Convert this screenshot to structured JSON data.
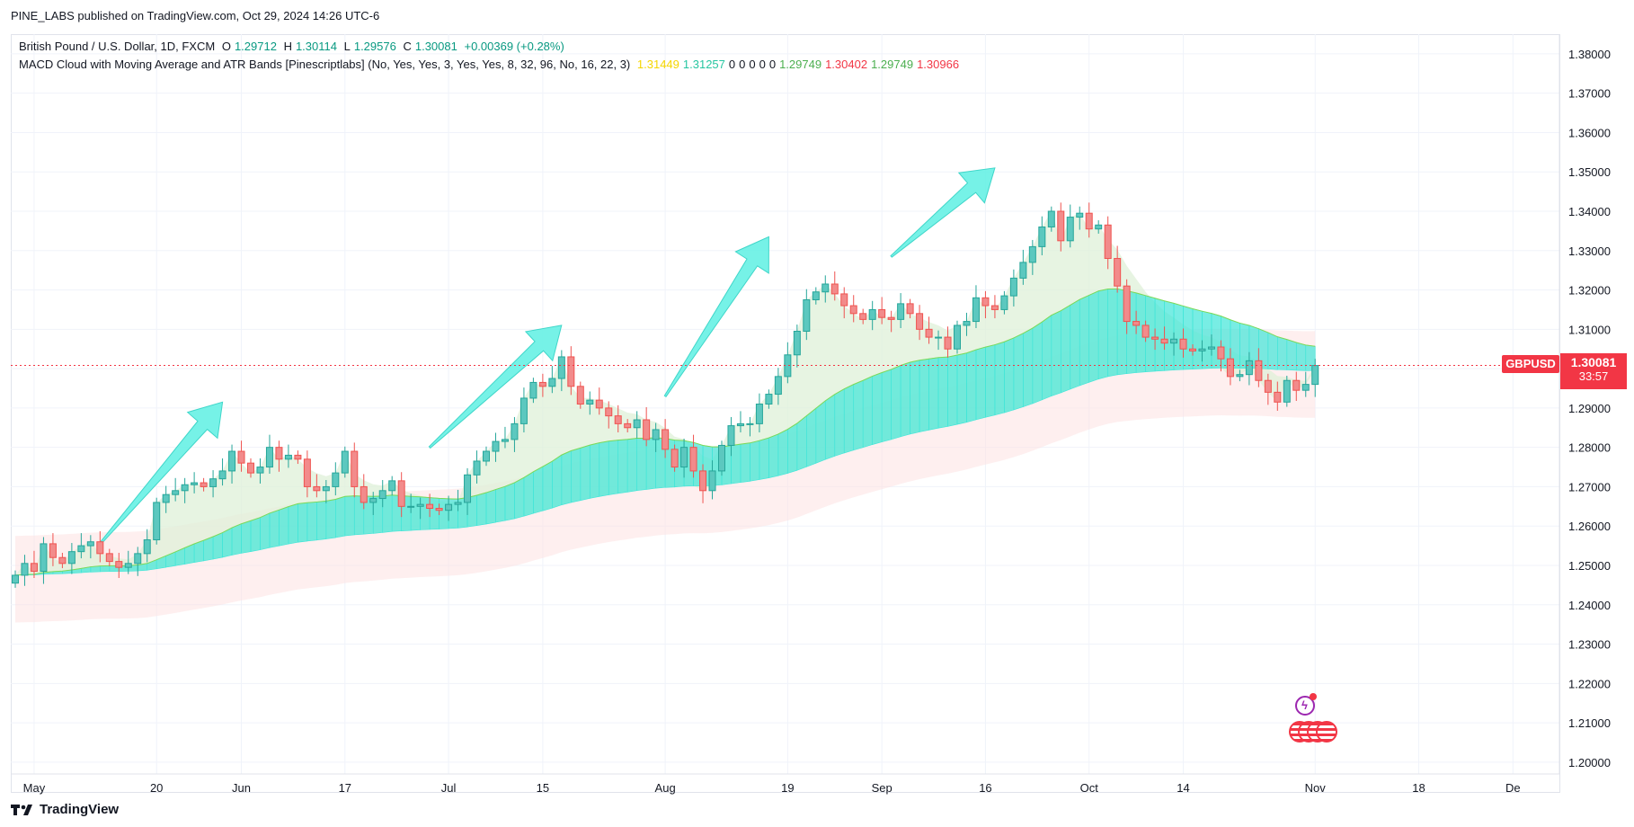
{
  "header": {
    "publisher": "PINE_LABS published on TradingView.com, Oct 29, 2024 14:26 UTC-6"
  },
  "legend": {
    "instrument": "British Pound / U.S. Dollar, 1D, FXCM",
    "open_label": "O",
    "open": "1.29712",
    "high_label": "H",
    "high": "1.30114",
    "low_label": "L",
    "low": "1.29576",
    "close_label": "C",
    "close": "1.30081",
    "change": "+0.00369 (+0.28%)",
    "indicator": "MACD Cloud with Moving Average and ATR Bands [Pinescriptlabs] (No, Yes, Yes, 3, Yes, Yes, 8, 32, 96, No, 16, 22, 3)",
    "ind_values": [
      {
        "v": "1.31449",
        "color": "#f5d600"
      },
      {
        "v": "1.31257",
        "color": "#26c6a1"
      },
      {
        "v": "0",
        "color": "#131722"
      },
      {
        "v": "0",
        "color": "#131722"
      },
      {
        "v": "0",
        "color": "#131722"
      },
      {
        "v": "0",
        "color": "#131722"
      },
      {
        "v": "0",
        "color": "#131722"
      },
      {
        "v": "1.29749",
        "color": "#4caf50"
      },
      {
        "v": "1.30402",
        "color": "#f23645"
      },
      {
        "v": "1.29749",
        "color": "#4caf50"
      },
      {
        "v": "1.30966",
        "color": "#f23645"
      }
    ]
  },
  "price_label": {
    "symbol": "GBPUSD",
    "price": "1.30081",
    "countdown": "33:57"
  },
  "footer": {
    "brand": "TradingView"
  },
  "colors": {
    "up": "#26a69a",
    "up_fill": "#5cc8bf",
    "down": "#ef5350",
    "down_fill": "#f28b8b",
    "cloud_teal": "#3ee6d8",
    "cloud_yellow": "#ffe680",
    "band_green": "#dff0d8",
    "band_red": "#fde0e0",
    "arrow": "#5ef0e3",
    "price_line": "#f23645"
  },
  "chart_data": {
    "type": "candlestick",
    "symbol": "GBPUSD",
    "interval": "1D",
    "ylim": [
      1.197,
      1.385
    ],
    "y_ticks": [
      "1.20000",
      "1.21000",
      "1.22000",
      "1.23000",
      "1.24000",
      "1.25000",
      "1.26000",
      "1.27000",
      "1.28000",
      "1.29000",
      "1.30000",
      "1.31000",
      "1.32000",
      "1.33000",
      "1.34000",
      "1.35000",
      "1.36000",
      "1.37000",
      "1.38000"
    ],
    "x_ticks": [
      {
        "label": "May",
        "idx": 2
      },
      {
        "label": "20",
        "idx": 15
      },
      {
        "label": "Jun",
        "idx": 24
      },
      {
        "label": "17",
        "idx": 35
      },
      {
        "label": "Jul",
        "idx": 46
      },
      {
        "label": "15",
        "idx": 56
      },
      {
        "label": "Aug",
        "idx": 69
      },
      {
        "label": "19",
        "idx": 82
      },
      {
        "label": "Sep",
        "idx": 92
      },
      {
        "label": "16",
        "idx": 103
      },
      {
        "label": "Oct",
        "idx": 114
      },
      {
        "label": "14",
        "idx": 124
      },
      {
        "label": "Nov",
        "idx": 138
      },
      {
        "label": "18",
        "idx": 149
      },
      {
        "label": "De",
        "idx": 159
      }
    ],
    "ohlc_close": [
      1.2475,
      1.2505,
      1.2485,
      1.2555,
      1.252,
      1.2505,
      1.2535,
      1.255,
      1.256,
      1.253,
      1.251,
      1.2495,
      1.2505,
      1.253,
      1.2565,
      1.266,
      1.268,
      1.269,
      1.2705,
      1.271,
      1.27,
      1.272,
      1.274,
      1.279,
      1.276,
      1.2735,
      1.275,
      1.28,
      1.277,
      1.278,
      1.277,
      1.27,
      1.269,
      1.27,
      1.2735,
      1.279,
      1.27,
      1.266,
      1.267,
      1.269,
      1.2715,
      1.265,
      1.265,
      1.2655,
      1.2645,
      1.264,
      1.2655,
      1.266,
      1.273,
      1.2765,
      1.279,
      1.2815,
      1.282,
      1.286,
      1.2925,
      1.2965,
      1.2955,
      1.2975,
      1.303,
      1.2955,
      1.291,
      1.292,
      1.29,
      1.288,
      1.286,
      1.285,
      1.287,
      1.282,
      1.2845,
      1.2795,
      1.275,
      1.28,
      1.274,
      1.269,
      1.274,
      1.2805,
      1.2855,
      1.286,
      1.286,
      1.291,
      1.2935,
      1.298,
      1.3035,
      1.3095,
      1.3175,
      1.3195,
      1.3215,
      1.319,
      1.316,
      1.314,
      1.3125,
      1.315,
      1.313,
      1.3125,
      1.3165,
      1.314,
      1.31,
      1.308,
      1.308,
      1.305,
      1.311,
      1.312,
      1.318,
      1.316,
      1.315,
      1.3185,
      1.323,
      1.327,
      1.331,
      1.336,
      1.34,
      1.3325,
      1.3385,
      1.3395,
      1.3355,
      1.3365,
      1.328,
      1.321,
      1.312,
      1.311,
      1.308,
      1.3075,
      1.3065,
      1.3075,
      1.305,
      1.3045,
      1.305,
      1.3055,
      1.3025,
      1.298,
      1.2985,
      1.302,
      1.297,
      1.294,
      1.2915,
      1.297,
      1.2945,
      1.296,
      1.3008
    ]
  }
}
